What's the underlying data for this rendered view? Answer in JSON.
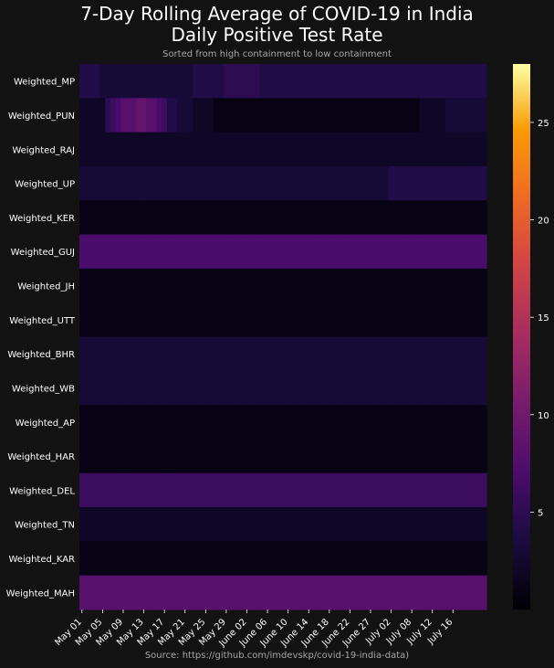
{
  "title_line1": "7-Day Rolling Average of COVID-19 in India",
  "title_line2": "Daily Positive Test Rate",
  "subtitle": "Sorted from high containment to low containment",
  "source": "Source: https://github.com/imdevskp/covid-19-india-data)",
  "chart_data": {
    "type": "heatmap",
    "rows": [
      "Weighted_MP",
      "Weighted_PUN",
      "Weighted_RAJ",
      "Weighted_UP",
      "Weighted_KER",
      "Weighted_GUJ",
      "Weighted_JH",
      "Weighted_UTT",
      "Weighted_BHR",
      "Weighted_WB",
      "Weighted_AP",
      "Weighted_HAR",
      "Weighted_DEL",
      "Weighted_TN",
      "Weighted_KAR",
      "Weighted_MAH"
    ],
    "x_tick_labels": [
      "May 01",
      "May 05",
      "May 09",
      "May 13",
      "May 17",
      "May 21",
      "May 25",
      "May 29",
      "June 02",
      "June 06",
      "June 10",
      "June 14",
      "June 18",
      "June 22",
      "June 27",
      "July 02",
      "July 08",
      "July 12",
      "July 16"
    ],
    "n_columns": 79,
    "colorbar": {
      "range": [
        0,
        28
      ],
      "ticks": [
        5,
        10,
        15,
        20,
        25
      ],
      "colormap": "inferno-like (black → purple → red → orange → yellow)"
    },
    "values": [
      [
        4,
        4,
        4,
        4,
        3,
        3,
        3,
        3,
        3,
        3,
        3,
        3,
        3,
        3,
        3,
        3,
        3,
        3,
        3,
        3,
        3,
        3,
        4,
        4,
        4,
        4,
        4,
        4,
        5,
        5,
        5,
        5,
        5,
        5,
        5,
        4,
        4,
        4,
        4,
        4,
        4,
        4,
        4,
        4,
        4,
        4,
        4,
        4,
        4,
        4,
        4,
        4,
        4,
        4,
        4,
        4,
        4,
        4,
        4,
        4,
        4,
        4,
        4,
        4,
        4,
        4,
        4,
        4,
        4,
        4,
        4,
        4,
        4,
        4,
        4,
        4,
        4,
        4,
        4
      ],
      [
        2,
        2,
        2,
        2,
        2,
        5,
        6,
        7,
        8,
        8,
        8,
        9,
        9,
        8,
        8,
        7,
        6,
        4,
        4,
        3,
        3,
        3,
        2,
        2,
        2,
        2,
        1,
        1,
        1,
        1,
        1,
        1,
        1,
        1,
        1,
        1,
        1,
        1,
        1,
        1,
        1,
        1,
        1,
        1,
        1,
        1,
        1,
        1,
        1,
        1,
        1,
        1,
        1,
        1,
        1,
        1,
        1,
        1,
        1,
        1,
        1,
        1,
        1,
        1,
        1,
        1,
        2,
        2,
        2,
        2,
        2,
        3,
        3,
        3,
        3,
        3,
        3,
        3,
        3
      ],
      [
        2,
        2,
        2,
        2,
        2,
        2,
        2,
        2,
        2,
        2,
        2,
        2,
        2,
        2,
        2,
        2,
        2,
        2,
        2,
        2,
        2,
        2,
        2,
        2,
        2,
        2,
        2,
        2,
        2,
        2,
        2,
        2,
        2,
        2,
        2,
        2,
        2,
        2,
        2,
        2,
        2,
        2,
        2,
        2,
        2,
        2,
        2,
        2,
        2,
        2,
        2,
        2,
        2,
        2,
        2,
        2,
        2,
        2,
        2,
        2,
        2,
        2,
        2,
        2,
        2,
        2,
        2,
        2,
        2,
        2,
        2,
        2,
        2,
        2,
        2,
        2,
        2,
        2,
        2
      ],
      [
        3,
        3,
        3,
        3,
        3,
        3,
        3,
        3,
        3,
        3,
        3,
        3,
        3,
        3,
        3,
        3,
        3,
        3,
        3,
        3,
        3,
        3,
        3,
        3,
        3,
        3,
        3,
        3,
        3,
        3,
        3,
        3,
        3,
        3,
        3,
        3,
        3,
        3,
        3,
        3,
        3,
        3,
        3,
        3,
        3,
        3,
        3,
        3,
        3,
        3,
        3,
        3,
        3,
        3,
        3,
        3,
        3,
        3,
        3,
        3,
        4,
        4,
        4,
        4,
        4,
        4,
        4,
        4,
        4,
        4,
        4,
        4,
        4,
        4,
        4,
        4,
        4,
        4,
        4
      ],
      [
        1,
        1,
        1,
        1,
        1,
        1,
        1,
        1,
        1,
        1,
        1,
        1,
        1,
        1,
        1,
        1,
        1,
        1,
        1,
        1,
        1,
        1,
        1,
        1,
        1,
        1,
        1,
        1,
        1,
        1,
        1,
        1,
        1,
        1,
        1,
        1,
        1,
        1,
        1,
        1,
        1,
        1,
        1,
        1,
        1,
        1,
        1,
        1,
        1,
        1,
        1,
        1,
        1,
        1,
        1,
        1,
        1,
        1,
        1,
        1,
        1,
        1,
        1,
        1,
        1,
        1,
        1,
        1,
        1,
        1,
        1,
        1,
        1,
        1,
        1,
        1,
        1,
        1,
        1
      ],
      [
        7,
        7,
        7,
        7,
        7,
        7,
        7,
        7,
        7,
        7,
        7,
        7,
        7,
        7,
        7,
        7,
        7,
        7,
        7,
        7,
        7,
        7,
        7,
        7,
        7,
        7,
        7,
        7,
        7,
        7,
        7,
        7,
        7,
        7,
        7,
        7,
        7,
        7,
        7,
        7,
        7,
        7,
        7,
        7,
        7,
        7,
        7,
        7,
        7,
        7,
        7,
        7,
        7,
        7,
        7,
        7,
        7,
        7,
        7,
        7,
        7,
        7,
        7,
        7,
        7,
        7,
        7,
        7,
        7,
        7,
        7,
        7,
        7,
        7,
        7,
        7,
        7,
        7,
        7
      ],
      [
        1,
        1,
        1,
        1,
        1,
        1,
        1,
        1,
        1,
        1,
        1,
        1,
        1,
        1,
        1,
        1,
        1,
        1,
        1,
        1,
        1,
        1,
        1,
        1,
        1,
        1,
        1,
        1,
        1,
        1,
        1,
        1,
        1,
        1,
        1,
        1,
        1,
        1,
        1,
        1,
        1,
        1,
        1,
        1,
        1,
        1,
        1,
        1,
        1,
        1,
        1,
        1,
        1,
        1,
        1,
        1,
        1,
        1,
        1,
        1,
        1,
        1,
        1,
        1,
        1,
        1,
        1,
        1,
        1,
        1,
        1,
        1,
        1,
        1,
        1,
        1,
        1,
        1,
        1
      ],
      [
        1,
        1,
        1,
        1,
        1,
        1,
        1,
        1,
        1,
        1,
        1,
        1,
        1,
        1,
        1,
        1,
        1,
        1,
        1,
        1,
        1,
        1,
        1,
        1,
        1,
        1,
        1,
        1,
        1,
        1,
        1,
        1,
        1,
        1,
        1,
        1,
        1,
        1,
        1,
        1,
        1,
        1,
        1,
        1,
        1,
        1,
        1,
        1,
        1,
        1,
        1,
        1,
        1,
        1,
        1,
        1,
        1,
        1,
        1,
        1,
        1,
        1,
        1,
        1,
        1,
        1,
        1,
        1,
        1,
        1,
        1,
        1,
        1,
        1,
        1,
        1,
        1,
        1,
        1
      ],
      [
        3,
        3,
        3,
        3,
        3,
        3,
        3,
        3,
        3,
        3,
        3,
        3,
        3,
        3,
        3,
        3,
        3,
        3,
        3,
        3,
        3,
        3,
        3,
        3,
        3,
        3,
        3,
        3,
        3,
        3,
        3,
        3,
        3,
        3,
        3,
        3,
        3,
        3,
        3,
        3,
        3,
        3,
        3,
        3,
        3,
        3,
        3,
        3,
        3,
        3,
        3,
        3,
        3,
        3,
        3,
        3,
        3,
        3,
        3,
        3,
        3,
        3,
        3,
        3,
        3,
        3,
        3,
        3,
        3,
        3,
        3,
        3,
        3,
        3,
        3,
        3,
        3,
        3,
        3
      ],
      [
        3,
        3,
        3,
        3,
        3,
        3,
        3,
        3,
        3,
        3,
        3,
        3,
        3,
        3,
        3,
        3,
        3,
        3,
        3,
        3,
        3,
        3,
        3,
        3,
        3,
        3,
        3,
        3,
        3,
        3,
        3,
        3,
        3,
        3,
        3,
        3,
        3,
        3,
        3,
        3,
        3,
        3,
        3,
        3,
        3,
        3,
        3,
        3,
        3,
        3,
        3,
        3,
        3,
        3,
        3,
        3,
        3,
        3,
        3,
        3,
        3,
        3,
        3,
        3,
        3,
        3,
        3,
        3,
        3,
        3,
        3,
        3,
        3,
        3,
        3,
        3,
        3,
        3,
        3
      ],
      [
        1,
        1,
        1,
        1,
        1,
        1,
        1,
        1,
        1,
        1,
        1,
        1,
        1,
        1,
        1,
        1,
        1,
        1,
        1,
        1,
        1,
        1,
        1,
        1,
        1,
        1,
        1,
        1,
        1,
        1,
        1,
        1,
        1,
        1,
        1,
        1,
        1,
        1,
        1,
        1,
        1,
        1,
        1,
        1,
        1,
        1,
        1,
        1,
        1,
        1,
        1,
        1,
        1,
        1,
        1,
        1,
        1,
        1,
        1,
        1,
        1,
        1,
        1,
        1,
        1,
        1,
        1,
        1,
        1,
        1,
        1,
        1,
        1,
        1,
        1,
        1,
        1,
        1,
        1
      ],
      [
        1,
        1,
        1,
        1,
        1,
        1,
        1,
        1,
        1,
        1,
        1,
        1,
        1,
        1,
        1,
        1,
        1,
        1,
        1,
        1,
        1,
        1,
        1,
        1,
        1,
        1,
        1,
        1,
        1,
        1,
        1,
        1,
        1,
        1,
        1,
        1,
        1,
        1,
        1,
        1,
        1,
        1,
        1,
        1,
        1,
        1,
        1,
        1,
        1,
        1,
        1,
        1,
        1,
        1,
        1,
        1,
        1,
        1,
        1,
        1,
        1,
        1,
        1,
        1,
        1,
        1,
        1,
        1,
        1,
        1,
        1,
        1,
        1,
        1,
        1,
        1,
        1,
        1,
        1
      ],
      [
        6,
        6,
        6,
        6,
        6,
        6,
        6,
        6,
        6,
        6,
        6,
        6,
        6,
        6,
        6,
        6,
        6,
        6,
        6,
        6,
        6,
        6,
        6,
        6,
        6,
        6,
        6,
        6,
        6,
        6,
        6,
        6,
        6,
        6,
        6,
        6,
        6,
        6,
        6,
        6,
        6,
        6,
        6,
        6,
        6,
        6,
        6,
        6,
        6,
        6,
        6,
        6,
        6,
        6,
        6,
        6,
        6,
        6,
        6,
        6,
        6,
        6,
        6,
        6,
        6,
        6,
        6,
        6,
        6,
        6,
        6,
        6,
        6,
        6,
        6,
        6,
        6,
        6,
        6
      ],
      [
        2,
        2,
        2,
        2,
        2,
        2,
        2,
        2,
        2,
        2,
        2,
        2,
        2,
        2,
        2,
        2,
        2,
        2,
        2,
        2,
        2,
        2,
        2,
        2,
        2,
        2,
        2,
        2,
        2,
        2,
        2,
        2,
        2,
        2,
        2,
        2,
        2,
        2,
        2,
        2,
        2,
        2,
        2,
        2,
        2,
        2,
        2,
        2,
        2,
        2,
        2,
        2,
        2,
        2,
        2,
        2,
        2,
        2,
        2,
        2,
        2,
        2,
        2,
        2,
        2,
        2,
        2,
        2,
        2,
        2,
        2,
        2,
        2,
        2,
        2,
        2,
        2,
        2,
        2
      ],
      [
        1,
        1,
        1,
        1,
        1,
        1,
        1,
        1,
        1,
        1,
        1,
        1,
        1,
        1,
        1,
        1,
        1,
        1,
        1,
        1,
        1,
        1,
        1,
        1,
        1,
        1,
        1,
        1,
        1,
        1,
        1,
        1,
        1,
        1,
        1,
        1,
        1,
        1,
        1,
        1,
        1,
        1,
        1,
        1,
        1,
        1,
        1,
        1,
        1,
        1,
        1,
        1,
        1,
        1,
        1,
        1,
        1,
        1,
        1,
        1,
        1,
        1,
        1,
        1,
        1,
        1,
        1,
        1,
        1,
        1,
        1,
        1,
        1,
        1,
        1,
        1,
        1,
        1,
        1
      ],
      [
        8,
        8,
        8,
        8,
        8,
        8,
        8,
        8,
        8,
        8,
        8,
        8,
        8,
        8,
        8,
        8,
        8,
        8,
        8,
        8,
        8,
        8,
        8,
        8,
        8,
        8,
        8,
        8,
        8,
        8,
        8,
        8,
        8,
        8,
        8,
        8,
        8,
        8,
        8,
        8,
        8,
        8,
        8,
        8,
        8,
        8,
        8,
        8,
        8,
        8,
        8,
        8,
        8,
        8,
        8,
        8,
        8,
        8,
        8,
        8,
        8,
        8,
        8,
        8,
        8,
        8,
        8,
        8,
        8,
        8,
        8,
        8,
        8,
        8,
        8,
        8,
        8,
        8,
        8
      ]
    ]
  }
}
